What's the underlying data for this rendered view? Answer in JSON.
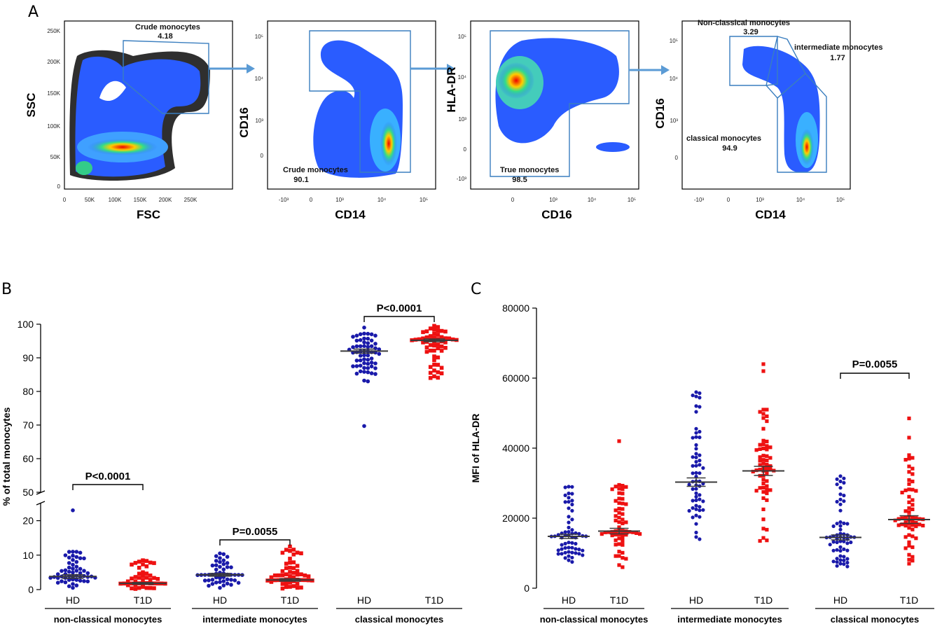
{
  "figure": {
    "panel_letters": [
      "A",
      "B",
      "C"
    ]
  },
  "flow_panels": [
    {
      "xlabel": "FSC",
      "ylabel": "SSC",
      "xticks": [
        "0",
        "50K",
        "100K",
        "150K",
        "200K",
        "250K"
      ],
      "yticks": [
        "0",
        "50K",
        "100K",
        "150K",
        "200K",
        "250K"
      ],
      "gates": [
        {
          "name": "Crude monocytes",
          "value": "4.18"
        }
      ]
    },
    {
      "xlabel": "CD14",
      "ylabel": "CD16",
      "xticks": [
        "-10³",
        "0",
        "10³",
        "10⁴",
        "10⁵"
      ],
      "yticks": [
        "0",
        "10³",
        "10⁴",
        "10⁵"
      ],
      "gates": [
        {
          "name": "Crude monocytes",
          "value": "90.1"
        }
      ]
    },
    {
      "xlabel": "CD16",
      "ylabel": "HLA-DR",
      "xticks": [
        "0",
        "10³",
        "10⁴",
        "10⁵"
      ],
      "yticks": [
        "-10³",
        "0",
        "10³",
        "10⁴",
        "10⁵"
      ],
      "gates": [
        {
          "name": "True monocytes",
          "value": "98.5"
        }
      ]
    },
    {
      "xlabel": "CD14",
      "ylabel": "CD16",
      "xticks": [
        "-10³",
        "0",
        "10³",
        "10⁴",
        "10⁵"
      ],
      "yticks": [
        "0",
        "10³",
        "10⁴",
        "10⁵"
      ],
      "gates": [
        {
          "name": "Non-classical monocytes",
          "value": "3.29"
        },
        {
          "name": "intermediate monocytes",
          "value": "1.77"
        },
        {
          "name": "classical monocytes",
          "value": "94.9"
        }
      ]
    }
  ],
  "chart_data": [
    {
      "type": "scatter",
      "title": "",
      "ylabel": "% of total monocytes",
      "ylim_lower": [
        0,
        25
      ],
      "ylim_upper": [
        50,
        100
      ],
      "yticks_lower": [
        0,
        10,
        20
      ],
      "yticks_upper": [
        50,
        60,
        70,
        80,
        90,
        100
      ],
      "groups": [
        "non-classical monocytes",
        "intermediate monocytes",
        "classical monocytes"
      ],
      "categories": [
        "HD",
        "T1D",
        "HD",
        "T1D",
        "HD",
        "T1D"
      ],
      "series": [
        {
          "name": "HD",
          "color": "#1a1aaa",
          "marker": "circle",
          "groups": [
            {
              "mean": 3.8,
              "sem": 0.5,
              "min": 0.5,
              "max": 11,
              "n": 60,
              "outliers": [
                23
              ]
            },
            {
              "mean": 4.3,
              "sem": 0.4,
              "min": 0.5,
              "max": 10.5,
              "n": 60,
              "outliers": []
            },
            {
              "mean": 92.0,
              "sem": 0.6,
              "min": 83,
              "max": 99,
              "n": 60,
              "outliers": [
                69.7
              ]
            }
          ]
        },
        {
          "name": "T1D",
          "color": "#ee1111",
          "marker": "square",
          "groups": [
            {
              "mean": 1.8,
              "sem": 0.25,
              "min": 0.2,
              "max": 8.5,
              "n": 60,
              "outliers": []
            },
            {
              "mean": 2.8,
              "sem": 0.35,
              "min": 0.3,
              "max": 12.5,
              "n": 60,
              "outliers": []
            },
            {
              "mean": 95.2,
              "sem": 0.4,
              "min": 84,
              "max": 99.5,
              "n": 60,
              "outliers": []
            }
          ]
        }
      ],
      "annotations": [
        {
          "group": 0,
          "text": "P<0.0001"
        },
        {
          "group": 1,
          "text": "P=0.0055"
        },
        {
          "group": 2,
          "text": "P<0.0001"
        }
      ]
    },
    {
      "type": "scatter",
      "title": "",
      "ylabel": "MFI of HLA-DR",
      "ylim": [
        0,
        80000
      ],
      "yticks": [
        0,
        20000,
        40000,
        60000,
        80000
      ],
      "groups": [
        "non-classical monocytes",
        "intermediate monocytes",
        "classical monocytes"
      ],
      "categories": [
        "HD",
        "T1D",
        "HD",
        "T1D",
        "HD",
        "T1D"
      ],
      "series": [
        {
          "name": "HD",
          "color": "#1a1aaa",
          "marker": "circle",
          "groups": [
            {
              "mean": 14800,
              "sem": 600,
              "min": 7500,
              "max": 29000,
              "n": 60,
              "outliers": []
            },
            {
              "mean": 30300,
              "sem": 1200,
              "min": 14000,
              "max": 56000,
              "n": 60,
              "outliers": []
            },
            {
              "mean": 14500,
              "sem": 700,
              "min": 6200,
              "max": 32000,
              "n": 60,
              "outliers": []
            }
          ]
        },
        {
          "name": "T1D",
          "color": "#ee1111",
          "marker": "square",
          "groups": [
            {
              "mean": 16300,
              "sem": 800,
              "min": 6000,
              "max": 29500,
              "n": 60,
              "outliers": [
                42000
              ]
            },
            {
              "mean": 33500,
              "sem": 1300,
              "min": 13500,
              "max": 51000,
              "n": 60,
              "outliers": [
                62000,
                64000
              ]
            },
            {
              "mean": 19600,
              "sem": 1100,
              "min": 7000,
              "max": 38000,
              "n": 60,
              "outliers": [
                43000,
                48500
              ]
            }
          ]
        }
      ],
      "annotations": [
        {
          "group": 2,
          "text": "P=0.0055"
        }
      ]
    }
  ]
}
